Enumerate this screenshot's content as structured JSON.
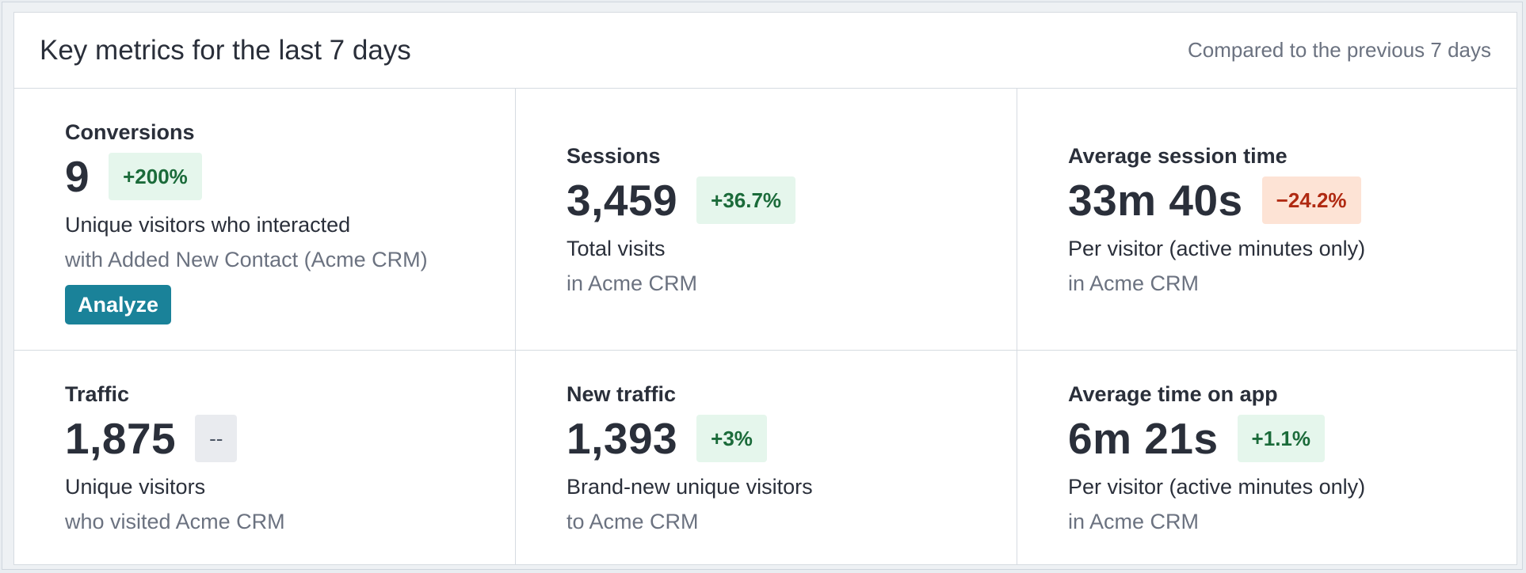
{
  "header": {
    "title": "Key metrics for the last 7 days",
    "subtitle": "Compared to the previous 7 days"
  },
  "metrics": [
    {
      "label": "Conversions",
      "value": "9",
      "delta": "+200%",
      "delta_trend": "up",
      "desc": "Unique visitors who interacted",
      "desc_sub": "with Added New Contact (Acme CRM)",
      "button": "Analyze"
    },
    {
      "label": "Sessions",
      "value": "3,459",
      "delta": "+36.7%",
      "delta_trend": "up",
      "desc": "Total visits",
      "desc_sub": "in Acme CRM"
    },
    {
      "label": "Average session time",
      "value": "33m 40s",
      "delta": "−24.2%",
      "delta_trend": "down",
      "desc": "Per visitor (active minutes only)",
      "desc_sub": "in Acme CRM"
    },
    {
      "label": "Traffic",
      "value": "1,875",
      "delta": "--",
      "delta_trend": "neutral",
      "desc": "Unique visitors",
      "desc_sub": "who visited Acme CRM"
    },
    {
      "label": "New traffic",
      "value": "1,393",
      "delta": "+3%",
      "delta_trend": "up",
      "desc": "Brand-new unique visitors",
      "desc_sub": "to Acme CRM"
    },
    {
      "label": "Average time on app",
      "value": "6m 21s",
      "delta": "+1.1%",
      "delta_trend": "up",
      "desc": "Per visitor (active minutes only)",
      "desc_sub": "in Acme CRM"
    }
  ],
  "colors": {
    "positive_bg": "#e5f6ec",
    "positive_text": "#1b6b3a",
    "negative_bg": "#fde3d5",
    "negative_text": "#b02a12",
    "neutral_bg": "#e9ebef",
    "button_bg": "#1a8299"
  }
}
